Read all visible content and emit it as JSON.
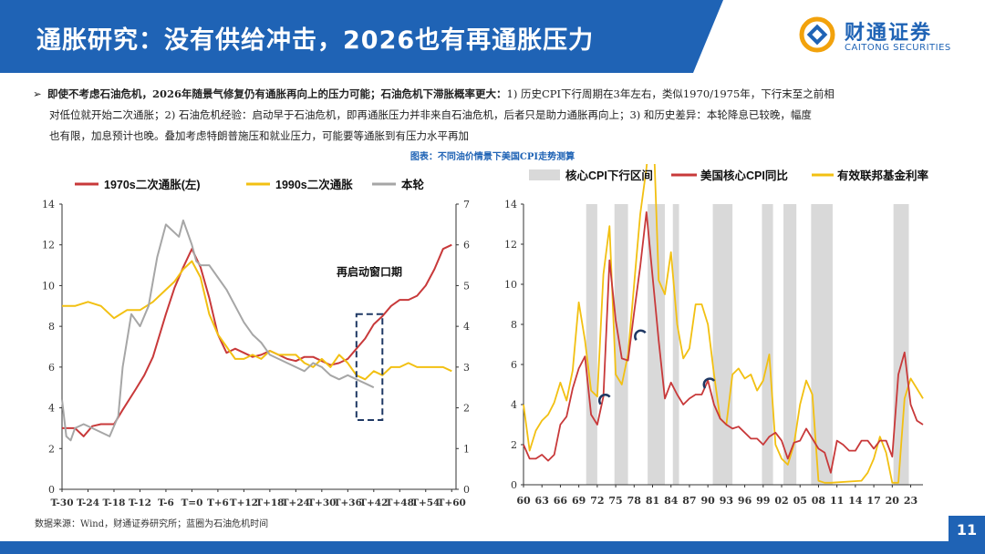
{
  "header": {
    "title": "通胀研究：没有供给冲击，2026也有再通胀压力",
    "logo_cn": "财通证券",
    "logo_en": "CAITONG SECURITIES"
  },
  "bullet": {
    "bold_text": "即使不考虑石油危机，2026年随景气修复仍有通胀再向上的压力可能；石油危机下滞胀概率更大：",
    "line1_rest": "1) 历史CPI下行周期在3年左右，类似1970/1975年，下行末至之前相",
    "line2": "对低位就开始二次通胀；2) 石油危机经验：启动早于石油危机，即再通胀压力并非来自石油危机，后者只是助力通胀再向上；3) 和历史差异：本轮降息已较晚，幅度",
    "line3": "也有限，加息预计也晚。叠加考虑特朗普施压和就业压力，可能要等通胀到有压力水平再加"
  },
  "figure_caption": "图表：不同油价情景下美国CPI走势测算",
  "source": "数据来源：Wind，财通证券研究所；蓝圈为石油危机时间",
  "page_number": "11",
  "colors": {
    "blue": "#1f63b5",
    "red": "#c8393a",
    "yellow": "#f2c012",
    "gray": "#a6a6a6",
    "shade": "#d9d9d9",
    "navy": "#1f3864"
  },
  "chart_data": [
    {
      "type": "line",
      "legend": [
        "1970s二次通胀(左)",
        "1990s二次通胀",
        "本轮"
      ],
      "annotation": "再启动窗口期",
      "x_ticks": [
        "T-30",
        "T-24",
        "T-18",
        "T-12",
        "T-6",
        "T=0",
        "T+6",
        "T+12",
        "T+18",
        "T+24",
        "T+30",
        "T+36",
        "T+42",
        "T+48",
        "T+54",
        "T+60"
      ],
      "xlim": [
        -30,
        61
      ],
      "ylim_left": [
        0,
        14
      ],
      "y_ticks_left": [
        "0",
        "2",
        "4",
        "6",
        "8",
        "10",
        "12",
        "14"
      ],
      "ylim_right": [
        0,
        7
      ],
      "y_ticks_right": [
        "0",
        "1",
        "2",
        "3",
        "4",
        "5",
        "6",
        "7"
      ],
      "window_x": [
        38,
        44
      ],
      "window_y_right": [
        1.7,
        4.3
      ],
      "series": [
        {
          "name": "1970s二次通胀(左)",
          "axis": "left",
          "color": "#c8393a",
          "x": [
            -30,
            -27,
            -25,
            -23,
            -21,
            -18,
            -16,
            -13,
            -11,
            -9,
            -6,
            -4,
            -2,
            0,
            2,
            4,
            6,
            8,
            10,
            12,
            14,
            16,
            18,
            20,
            22,
            24,
            26,
            28,
            30,
            32,
            34,
            36,
            38,
            40,
            42,
            44,
            46,
            48,
            50,
            52,
            54,
            56,
            58,
            60
          ],
          "y": [
            3.0,
            3.0,
            2.6,
            3.1,
            3.2,
            3.2,
            3.9,
            4.9,
            5.6,
            6.5,
            8.6,
            9.9,
            10.9,
            11.8,
            10.9,
            9.4,
            7.6,
            6.7,
            6.9,
            6.7,
            6.5,
            6.6,
            6.8,
            6.6,
            6.4,
            6.3,
            6.5,
            6.5,
            6.3,
            6.1,
            6.2,
            6.4,
            6.9,
            7.4,
            8.1,
            8.5,
            9.0,
            9.3,
            9.3,
            9.5,
            10.0,
            10.8,
            11.8,
            12.0
          ]
        },
        {
          "name": "1990s二次通胀",
          "axis": "right",
          "color": "#f2c012",
          "x": [
            -30,
            -27,
            -24,
            -21,
            -18,
            -15,
            -12,
            -9,
            -6,
            -4,
            -2,
            0,
            2,
            4,
            6,
            8,
            10,
            12,
            14,
            16,
            18,
            20,
            22,
            24,
            26,
            28,
            30,
            32,
            34,
            36,
            38,
            40,
            42,
            44,
            46,
            48,
            50,
            52,
            54,
            56,
            58,
            60
          ],
          "y": [
            4.5,
            4.5,
            4.6,
            4.5,
            4.2,
            4.4,
            4.4,
            4.6,
            4.9,
            5.1,
            5.4,
            5.6,
            5.2,
            4.3,
            3.8,
            3.5,
            3.2,
            3.2,
            3.3,
            3.2,
            3.4,
            3.3,
            3.3,
            3.3,
            3.1,
            3.0,
            3.2,
            3.0,
            3.3,
            3.1,
            2.8,
            2.7,
            2.9,
            2.8,
            3.0,
            3.0,
            3.1,
            3.0,
            3.0,
            3.0,
            3.0,
            2.9
          ]
        },
        {
          "name": "本轮",
          "axis": "right",
          "color": "#a6a6a6",
          "x": [
            -30,
            -29,
            -28,
            -27,
            -25,
            -23,
            -21,
            -19,
            -17,
            -16,
            -14,
            -12,
            -10,
            -8,
            -6,
            -4,
            -3,
            -2,
            0,
            1,
            2,
            4,
            6,
            8,
            10,
            12,
            14,
            16,
            18,
            20,
            22,
            24,
            26,
            28,
            30,
            32,
            34,
            36,
            38,
            40,
            42
          ],
          "y": [
            2.2,
            1.3,
            1.2,
            1.5,
            1.6,
            1.5,
            1.4,
            1.3,
            1.8,
            3.0,
            4.3,
            4.0,
            4.5,
            5.7,
            6.5,
            6.3,
            6.2,
            6.6,
            6.0,
            5.6,
            5.5,
            5.5,
            5.2,
            4.9,
            4.5,
            4.1,
            3.8,
            3.6,
            3.3,
            3.2,
            3.1,
            3.0,
            2.9,
            3.1,
            3.0,
            2.8,
            2.7,
            2.8,
            2.7,
            2.6,
            2.5
          ]
        }
      ]
    },
    {
      "type": "line",
      "legend": [
        "核心CPI下行区间",
        "美国核心CPI同比",
        "有效联邦基金利率"
      ],
      "x_ticks": [
        "60",
        "63",
        "66",
        "69",
        "72",
        "75",
        "78",
        "81",
        "84",
        "87",
        "90",
        "93",
        "96",
        "99",
        "02",
        "05",
        "08",
        "11",
        "14",
        "17",
        "20",
        "23"
      ],
      "xlim": [
        1960,
        2025
      ],
      "ylim": [
        0,
        14
      ],
      "y_ticks": [
        "0",
        "2",
        "4",
        "6",
        "8",
        "10",
        "12",
        "14"
      ],
      "shaded_ranges": [
        [
          1970.2,
          1972.0
        ],
        [
          1974.8,
          1977.0
        ],
        [
          1980.2,
          1983.0
        ],
        [
          1984.3,
          1985.3
        ],
        [
          1990.8,
          1994.0
        ],
        [
          1998.8,
          2000.6
        ],
        [
          2002.3,
          2004.4
        ],
        [
          2006.8,
          2010.3
        ],
        [
          2020.2,
          2022.7
        ]
      ],
      "oil_crisis_markers": [
        [
          1973.3,
          4.2
        ],
        [
          1979.1,
          7.4
        ],
        [
          1990.3,
          5.0
        ]
      ],
      "series": [
        {
          "name": "美国核心CPI同比",
          "color": "#c8393a",
          "x": [
            1960,
            1961,
            1962,
            1963,
            1964,
            1965,
            1966,
            1967,
            1968,
            1969,
            1970,
            1971,
            1972,
            1973,
            1974,
            1975,
            1976,
            1977,
            1978,
            1979,
            1980,
            1981,
            1982,
            1983,
            1984,
            1985,
            1986,
            1987,
            1988,
            1989,
            1990,
            1991,
            1992,
            1993,
            1994,
            1995,
            1996,
            1997,
            1998,
            1999,
            2000,
            2001,
            2002,
            2003,
            2004,
            2005,
            2006,
            2007,
            2008,
            2009,
            2010,
            2011,
            2012,
            2013,
            2014,
            2015,
            2016,
            2017,
            2018,
            2019,
            2020,
            2021,
            2022,
            2023,
            2024,
            2025
          ],
          "y": [
            2.0,
            1.3,
            1.3,
            1.5,
            1.2,
            1.5,
            3.0,
            3.4,
            4.8,
            5.8,
            6.4,
            3.5,
            3.0,
            4.4,
            11.2,
            8.2,
            6.3,
            6.2,
            8.6,
            10.9,
            13.6,
            10.4,
            7.2,
            4.3,
            5.1,
            4.5,
            4.0,
            4.3,
            4.5,
            4.5,
            5.2,
            4.0,
            3.3,
            3.0,
            2.8,
            2.9,
            2.6,
            2.3,
            2.3,
            2.0,
            2.4,
            2.6,
            2.2,
            1.3,
            2.1,
            2.2,
            2.8,
            2.3,
            1.8,
            1.6,
            0.6,
            2.2,
            2.0,
            1.7,
            1.7,
            2.2,
            2.2,
            1.8,
            2.2,
            2.2,
            1.4,
            5.5,
            6.6,
            4.0,
            3.2,
            3.0
          ]
        },
        {
          "name": "有效联邦基金利率",
          "color": "#f2c012",
          "x": [
            1960,
            1961,
            1962,
            1963,
            1964,
            1965,
            1966,
            1967,
            1968,
            1969,
            1970,
            1971,
            1972,
            1973,
            1974,
            1975,
            1976,
            1977,
            1978,
            1979,
            1980,
            1981,
            1982,
            1983,
            1984,
            1985,
            1986,
            1987,
            1988,
            1989,
            1990,
            1991,
            1992,
            1993,
            1994,
            1995,
            1996,
            1997,
            1998,
            1999,
            2000,
            2001,
            2002,
            2003,
            2004,
            2005,
            2006,
            2007,
            2008,
            2009,
            2010,
            2015,
            2016,
            2017,
            2018,
            2019,
            2020,
            2021,
            2022,
            2023,
            2024,
            2025
          ],
          "y": [
            4.0,
            1.7,
            2.7,
            3.2,
            3.5,
            4.1,
            5.1,
            4.2,
            5.7,
            9.1,
            7.2,
            4.7,
            4.4,
            10.5,
            12.9,
            5.5,
            5.0,
            6.5,
            10.0,
            13.5,
            15.8,
            19.0,
            10.2,
            9.5,
            11.6,
            8.0,
            6.3,
            6.8,
            9.0,
            9.0,
            8.0,
            5.5,
            3.3,
            3.0,
            5.5,
            5.8,
            5.3,
            5.5,
            4.7,
            5.2,
            6.5,
            2.0,
            1.3,
            1.0,
            2.0,
            4.0,
            5.2,
            4.5,
            0.2,
            0.1,
            0.1,
            0.2,
            0.6,
            1.3,
            2.4,
            1.6,
            0.1,
            0.1,
            4.3,
            5.3,
            4.8,
            4.3
          ]
        }
      ]
    }
  ]
}
